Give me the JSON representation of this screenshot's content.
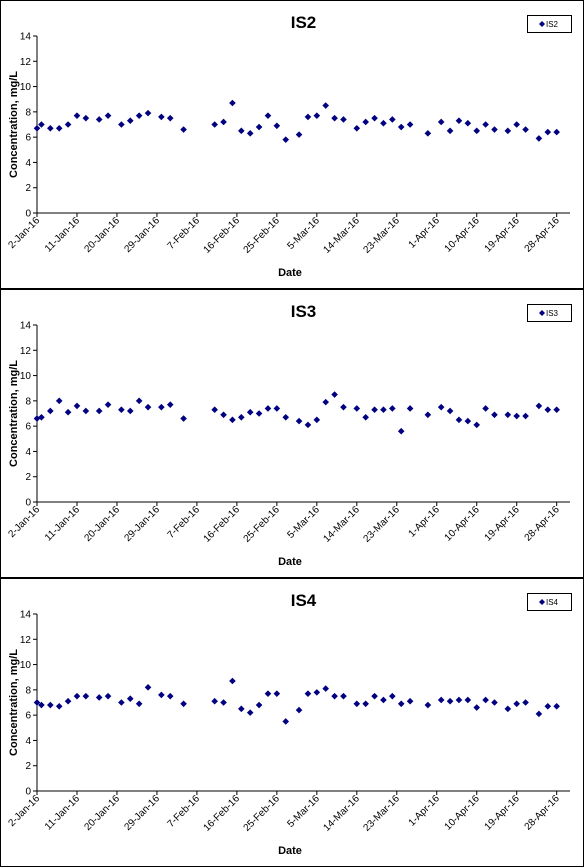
{
  "chart_data": [
    {
      "type": "scatter",
      "title": "IS2",
      "xlabel": "Date",
      "ylabel": "Concentration, mg/L",
      "ylim": [
        0,
        14
      ],
      "yticks": [
        0,
        2,
        4,
        6,
        8,
        10,
        12,
        14
      ],
      "xlim": [
        "2016-01-02",
        "2016-05-01"
      ],
      "xtick_labels": [
        "2-Jan-16",
        "11-Jan-16",
        "20-Jan-16",
        "29-Jan-16",
        "7-Feb-16",
        "16-Feb-16",
        "25-Feb-16",
        "5-Mar-16",
        "14-Mar-16",
        "23-Mar-16",
        "1-Apr-16",
        "10-Apr-16",
        "19-Apr-16",
        "28-Apr-16"
      ],
      "grid": false,
      "legend_position": "top-right",
      "marker_color": "#000080",
      "series": [
        {
          "name": "IS2",
          "x": [
            "2016-01-02",
            "2016-01-03",
            "2016-01-05",
            "2016-01-07",
            "2016-01-09",
            "2016-01-11",
            "2016-01-13",
            "2016-01-16",
            "2016-01-18",
            "2016-01-21",
            "2016-01-23",
            "2016-01-25",
            "2016-01-27",
            "2016-01-30",
            "2016-02-01",
            "2016-02-04",
            "2016-02-11",
            "2016-02-13",
            "2016-02-15",
            "2016-02-17",
            "2016-02-19",
            "2016-02-21",
            "2016-02-23",
            "2016-02-25",
            "2016-02-27",
            "2016-03-01",
            "2016-03-03",
            "2016-03-05",
            "2016-03-07",
            "2016-03-09",
            "2016-03-11",
            "2016-03-14",
            "2016-03-16",
            "2016-03-18",
            "2016-03-20",
            "2016-03-22",
            "2016-03-24",
            "2016-03-26",
            "2016-03-30",
            "2016-04-02",
            "2016-04-04",
            "2016-04-06",
            "2016-04-08",
            "2016-04-10",
            "2016-04-12",
            "2016-04-14",
            "2016-04-17",
            "2016-04-19",
            "2016-04-21",
            "2016-04-24",
            "2016-04-26",
            "2016-04-28"
          ],
          "y": [
            6.7,
            7.0,
            6.7,
            6.7,
            7.0,
            7.7,
            7.5,
            7.4,
            7.7,
            7.0,
            7.3,
            7.7,
            7.9,
            7.6,
            7.5,
            6.6,
            7.0,
            7.2,
            8.7,
            6.5,
            6.3,
            6.8,
            7.7,
            6.9,
            5.8,
            6.2,
            7.6,
            7.7,
            8.5,
            7.5,
            7.4,
            6.7,
            7.2,
            7.5,
            7.1,
            7.4,
            6.8,
            7.0,
            6.3,
            7.2,
            6.5,
            7.3,
            7.1,
            6.5,
            7.0,
            6.6,
            6.5,
            7.0,
            6.6,
            5.9,
            6.4,
            6.4
          ]
        }
      ]
    },
    {
      "type": "scatter",
      "title": "IS3",
      "xlabel": "Date",
      "ylabel": "Concentration, mg/L",
      "ylim": [
        0,
        14
      ],
      "yticks": [
        0,
        2,
        4,
        6,
        8,
        10,
        12,
        14
      ],
      "xlim": [
        "2016-01-02",
        "2016-05-01"
      ],
      "xtick_labels": [
        "2-Jan-16",
        "11-Jan-16",
        "20-Jan-16",
        "29-Jan-16",
        "7-Feb-16",
        "16-Feb-16",
        "25-Feb-16",
        "5-Mar-16",
        "14-Mar-16",
        "23-Mar-16",
        "1-Apr-16",
        "10-Apr-16",
        "19-Apr-16",
        "28-Apr-16"
      ],
      "grid": false,
      "legend_position": "top-right",
      "marker_color": "#000080",
      "series": [
        {
          "name": "IS3",
          "x": [
            "2016-01-02",
            "2016-01-03",
            "2016-01-05",
            "2016-01-07",
            "2016-01-09",
            "2016-01-11",
            "2016-01-13",
            "2016-01-16",
            "2016-01-18",
            "2016-01-21",
            "2016-01-23",
            "2016-01-25",
            "2016-01-27",
            "2016-01-30",
            "2016-02-01",
            "2016-02-04",
            "2016-02-11",
            "2016-02-13",
            "2016-02-15",
            "2016-02-17",
            "2016-02-19",
            "2016-02-21",
            "2016-02-23",
            "2016-02-25",
            "2016-02-27",
            "2016-03-01",
            "2016-03-03",
            "2016-03-05",
            "2016-03-07",
            "2016-03-09",
            "2016-03-11",
            "2016-03-14",
            "2016-03-16",
            "2016-03-18",
            "2016-03-20",
            "2016-03-22",
            "2016-03-24",
            "2016-03-26",
            "2016-03-30",
            "2016-04-02",
            "2016-04-04",
            "2016-04-06",
            "2016-04-08",
            "2016-04-10",
            "2016-04-12",
            "2016-04-14",
            "2016-04-17",
            "2016-04-19",
            "2016-04-21",
            "2016-04-24",
            "2016-04-26",
            "2016-04-28"
          ],
          "y": [
            6.6,
            6.7,
            7.2,
            8.0,
            7.1,
            7.6,
            7.2,
            7.2,
            7.7,
            7.3,
            7.2,
            8.0,
            7.5,
            7.5,
            7.7,
            6.6,
            7.3,
            6.9,
            6.5,
            6.7,
            7.1,
            7.0,
            7.4,
            7.4,
            6.7,
            6.4,
            6.1,
            6.5,
            7.9,
            8.5,
            7.5,
            7.4,
            6.7,
            7.3,
            7.3,
            7.4,
            5.6,
            7.4,
            6.9,
            7.5,
            7.2,
            6.5,
            6.4,
            6.1,
            7.4,
            6.9,
            6.9,
            6.8,
            6.8,
            7.6,
            7.3,
            7.3
          ]
        }
      ]
    },
    {
      "type": "scatter",
      "title": "IS4",
      "xlabel": "Date",
      "ylabel": "Concentration, mg/L",
      "ylim": [
        0,
        14
      ],
      "yticks": [
        0,
        2,
        4,
        6,
        8,
        10,
        12,
        14
      ],
      "xlim": [
        "2016-01-02",
        "2016-05-01"
      ],
      "xtick_labels": [
        "2-Jan-16",
        "11-Jan-16",
        "20-Jan-16",
        "29-Jan-16",
        "7-Feb-16",
        "16-Feb-16",
        "25-Feb-16",
        "5-Mar-16",
        "14-Mar-16",
        "23-Mar-16",
        "1-Apr-16",
        "10-Apr-16",
        "19-Apr-16",
        "28-Apr-16"
      ],
      "grid": false,
      "legend_position": "top-right",
      "marker_color": "#000080",
      "series": [
        {
          "name": "IS4",
          "x": [
            "2016-01-02",
            "2016-01-03",
            "2016-01-05",
            "2016-01-07",
            "2016-01-09",
            "2016-01-11",
            "2016-01-13",
            "2016-01-16",
            "2016-01-18",
            "2016-01-21",
            "2016-01-23",
            "2016-01-25",
            "2016-01-27",
            "2016-01-30",
            "2016-02-01",
            "2016-02-04",
            "2016-02-11",
            "2016-02-13",
            "2016-02-15",
            "2016-02-17",
            "2016-02-19",
            "2016-02-21",
            "2016-02-23",
            "2016-02-25",
            "2016-02-27",
            "2016-03-01",
            "2016-03-03",
            "2016-03-05",
            "2016-03-07",
            "2016-03-09",
            "2016-03-11",
            "2016-03-14",
            "2016-03-16",
            "2016-03-18",
            "2016-03-20",
            "2016-03-22",
            "2016-03-24",
            "2016-03-26",
            "2016-03-30",
            "2016-04-02",
            "2016-04-04",
            "2016-04-06",
            "2016-04-08",
            "2016-04-10",
            "2016-04-12",
            "2016-04-14",
            "2016-04-17",
            "2016-04-19",
            "2016-04-21",
            "2016-04-24",
            "2016-04-26",
            "2016-04-28"
          ],
          "y": [
            7.0,
            6.8,
            6.8,
            6.7,
            7.1,
            7.5,
            7.5,
            7.4,
            7.5,
            7.0,
            7.3,
            6.9,
            8.2,
            7.6,
            7.5,
            6.9,
            7.1,
            7.0,
            8.7,
            6.5,
            6.2,
            6.8,
            7.7,
            7.7,
            5.5,
            6.4,
            7.7,
            7.8,
            8.1,
            7.5,
            7.5,
            6.9,
            6.9,
            7.5,
            7.2,
            7.5,
            6.9,
            7.1,
            6.8,
            7.2,
            7.1,
            7.2,
            7.2,
            6.6,
            7.2,
            7.0,
            6.5,
            6.9,
            7.0,
            6.1,
            6.7,
            6.7
          ]
        }
      ]
    }
  ]
}
